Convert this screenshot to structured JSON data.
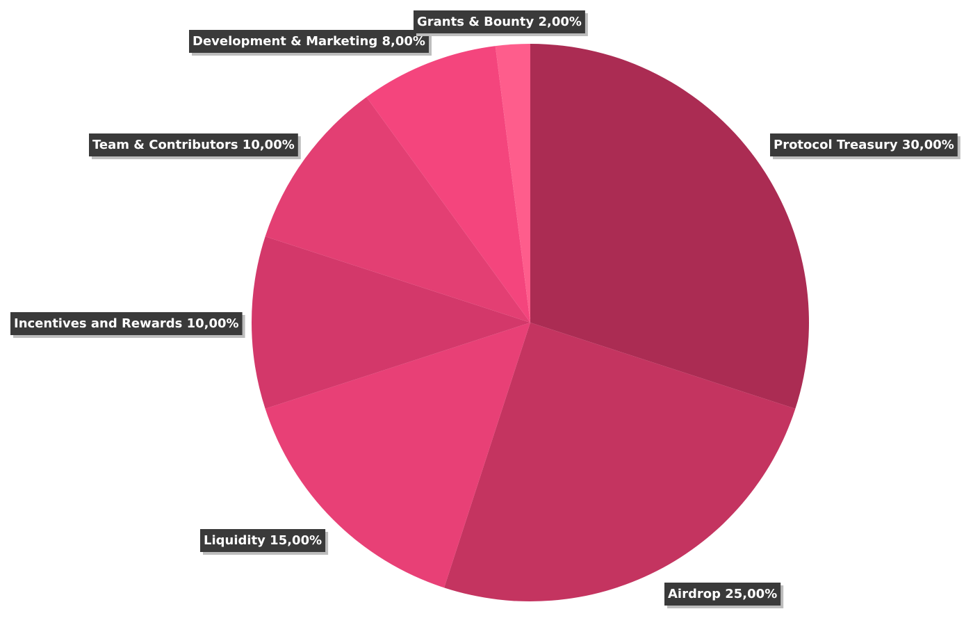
{
  "chart_data": {
    "type": "pie",
    "title": "",
    "slices": [
      {
        "label": "Protocol Treasury",
        "value": 30,
        "display": "Protocol Treasury 30,00%",
        "color": "#ab2c53"
      },
      {
        "label": "Airdrop",
        "value": 25,
        "display": "Airdrop 25,00%",
        "color": "#c43460"
      },
      {
        "label": "Liquidity",
        "value": 15,
        "display": "Liquidity 15,00%",
        "color": "#e84076"
      },
      {
        "label": "Incentives and Rewards",
        "value": 10,
        "display": "Incentives and Rewards 10,00%",
        "color": "#d3386a"
      },
      {
        "label": "Team & Contributors",
        "value": 10,
        "display": "Team & Contributors 10,00%",
        "color": "#e33f73"
      },
      {
        "label": "Development & Marketing",
        "value": 8,
        "display": "Development & Marketing 8,00%",
        "color": "#f4457d"
      },
      {
        "label": "Grants & Bounty",
        "value": 2,
        "display": "Grants & Bounty 2,00%",
        "color": "#fe5d8c"
      }
    ],
    "start_angle": "12 o'clock",
    "direction": "clockwise",
    "legend": "none",
    "label_style": "dark boxes beside slices"
  }
}
